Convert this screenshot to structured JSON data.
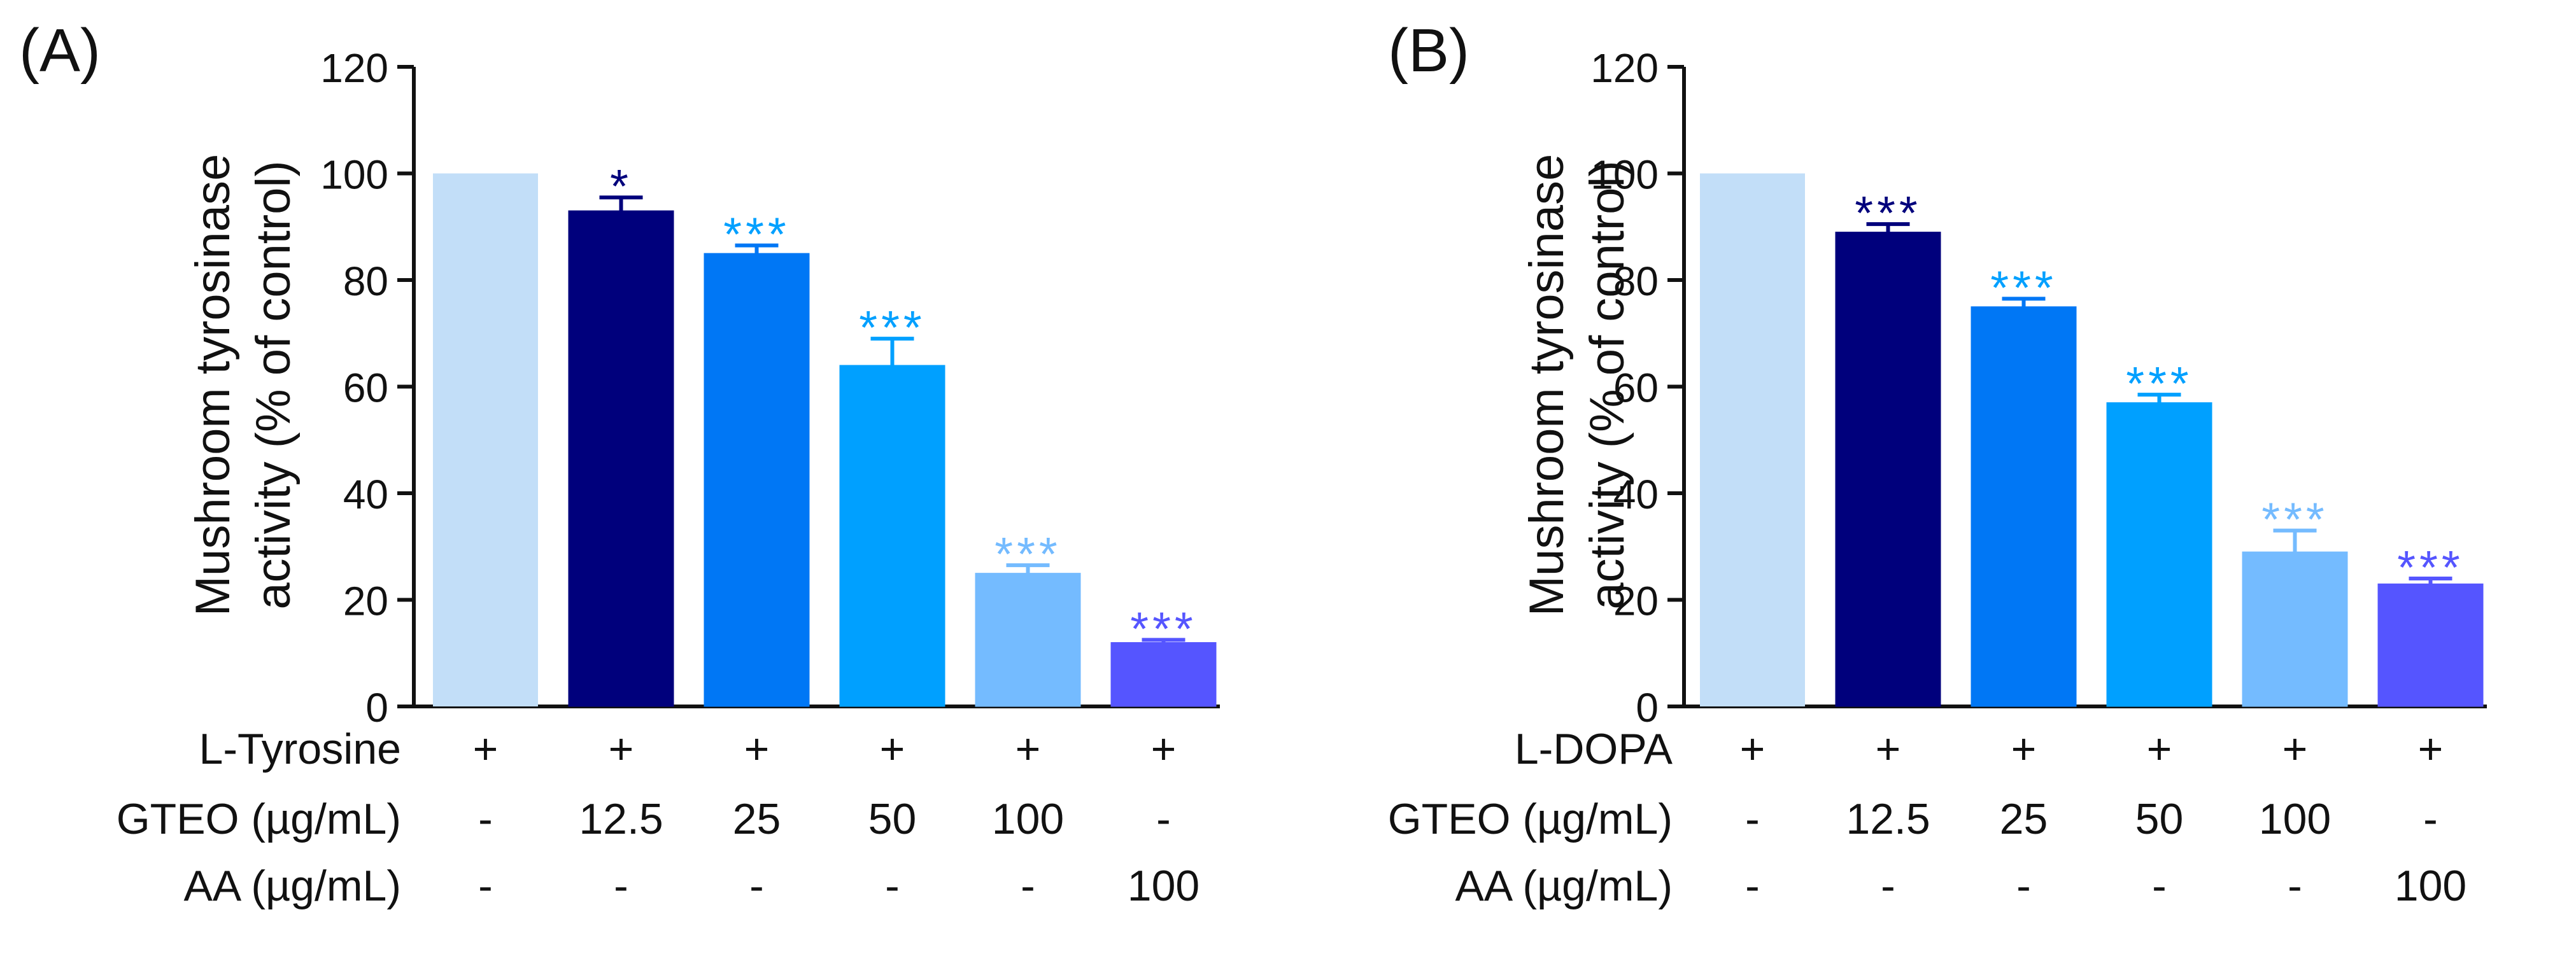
{
  "chart_data": [
    {
      "type": "bar",
      "panel_label": "(A)",
      "ylabel_lines": [
        "Mushroom tyrosinase",
        "activity (% of control)"
      ],
      "ylim": [
        0,
        120
      ],
      "yticks": [
        0,
        20,
        40,
        60,
        80,
        100,
        120
      ],
      "values": [
        100,
        93,
        85,
        64,
        25,
        12
      ],
      "errors": [
        0,
        2.5,
        1.5,
        5,
        1.5,
        0.5
      ],
      "significance": [
        "",
        "*",
        "***",
        "***",
        "***",
        "***"
      ],
      "colors": [
        "#c2def8",
        "#00007c",
        "#0077f5",
        "#00a0ff",
        "#74bbff",
        "#5555ff"
      ],
      "star_colors": [
        "",
        "#00007c",
        "#00a0ff",
        "#00a0ff",
        "#74bbff",
        "#5555ff"
      ],
      "rows": [
        {
          "label": "L-Tyrosine",
          "cells": [
            "+",
            "+",
            "+",
            "+",
            "+",
            "+"
          ]
        },
        {
          "label": "GTEO (µg/mL)",
          "cells": [
            "-",
            "12.5",
            "25",
            "50",
            "100",
            "-"
          ]
        },
        {
          "label": "AA (µg/mL)",
          "cells": [
            "-",
            "-",
            "-",
            "-",
            "-",
            "100"
          ]
        }
      ]
    },
    {
      "type": "bar",
      "panel_label": "(B)",
      "ylabel_lines": [
        "Mushroom tyrosinase",
        "activity (% of control)"
      ],
      "ylim": [
        0,
        120
      ],
      "yticks": [
        0,
        20,
        40,
        60,
        80,
        100,
        120
      ],
      "values": [
        100,
        89,
        75,
        57,
        29,
        23
      ],
      "errors": [
        0,
        1.5,
        1.5,
        1.5,
        4,
        1
      ],
      "significance": [
        "",
        "***",
        "***",
        "***",
        "***",
        "***"
      ],
      "colors": [
        "#c2def8",
        "#00007c",
        "#0077f5",
        "#00a0ff",
        "#74bbff",
        "#5555ff"
      ],
      "star_colors": [
        "",
        "#00007c",
        "#00a0ff",
        "#00a0ff",
        "#74bbff",
        "#5555ff"
      ],
      "rows": [
        {
          "label": "L-DOPA",
          "cells": [
            "+",
            "+",
            "+",
            "+",
            "+",
            "+"
          ]
        },
        {
          "label": "GTEO (µg/mL)",
          "cells": [
            "-",
            "12.5",
            "25",
            "50",
            "100",
            "-"
          ]
        },
        {
          "label": "AA (µg/mL)",
          "cells": [
            "-",
            "-",
            "-",
            "-",
            "-",
            "100"
          ]
        }
      ]
    }
  ]
}
